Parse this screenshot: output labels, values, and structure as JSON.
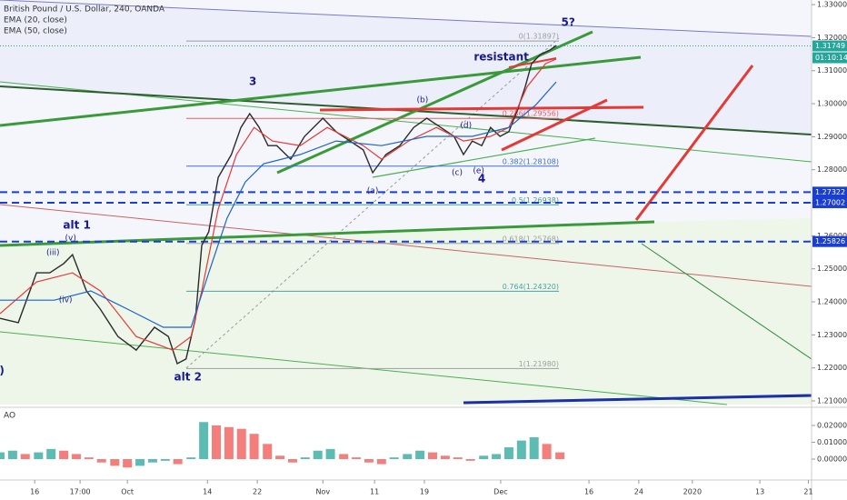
{
  "chart_data": [
    {
      "type": "line",
      "series": [
        {
          "name": "British Pound / U.S. Dollar, 240, OANDA",
          "color": "#2a2a2a",
          "x": [
            0,
            2.9,
            5.8,
            7.9,
            10.1,
            11.5,
            13.7,
            15.9,
            18.7,
            21.6,
            24.5,
            26.7,
            28.1,
            29.5,
            31.0,
            32.0,
            33.1,
            34.6,
            36.7,
            38.2,
            39.6,
            41.1,
            42.5,
            43.9,
            46.1,
            48.3,
            51.2,
            53.3,
            55.5,
            57.6,
            59.1,
            61.2,
            63.4,
            65.6,
            67.7,
            69.9,
            72.0,
            73.5,
            74.9,
            76.4,
            77.8,
            79.3,
            80.7,
            82.1,
            83.3,
            84.3,
            85.7,
            87.2,
            88.2
          ],
          "values": [
            1.235,
            1.2337,
            1.2488,
            1.2488,
            1.2516,
            1.2543,
            1.2433,
            1.2378,
            1.2295,
            1.2254,
            1.2323,
            1.2295,
            1.2213,
            1.2227,
            1.235,
            1.2571,
            1.2612,
            1.2777,
            1.2846,
            1.2928,
            1.297,
            1.2928,
            1.2873,
            1.2873,
            1.2832,
            1.2901,
            1.2956,
            1.2915,
            1.2887,
            1.286,
            1.2791,
            1.2846,
            1.2873,
            1.2928,
            1.2956,
            1.2928,
            1.2901,
            1.2846,
            1.2887,
            1.2873,
            1.2928,
            1.2901,
            1.2915,
            1.2983,
            1.3052,
            1.3121,
            1.3149,
            1.3162,
            1.3176
          ]
        },
        {
          "name": "EMA (20, close)",
          "color": "#e53935",
          "x": [
            0,
            5.8,
            11.5,
            15.9,
            21.6,
            27.4,
            30.3,
            32.0,
            34.6,
            37.5,
            40.3,
            43.2,
            47.6,
            51.9,
            57.6,
            60.5,
            64.8,
            69.2,
            73.5,
            77.8,
            80.7,
            83.6,
            86.5,
            88.2
          ],
          "values": [
            1.2364,
            1.246,
            1.2488,
            1.2433,
            1.2295,
            1.2254,
            1.2295,
            1.2433,
            1.2681,
            1.2846,
            1.2928,
            1.2887,
            1.2873,
            1.2928,
            1.2873,
            1.2832,
            1.2887,
            1.2928,
            1.2887,
            1.2901,
            1.2928,
            1.3052,
            1.3121,
            1.3135
          ]
        },
        {
          "name": "EMA (50, close)",
          "color": "#1e63c8",
          "x": [
            0,
            8.6,
            14.4,
            20.2,
            25.9,
            30.3,
            33.1,
            36.0,
            38.9,
            41.8,
            47.6,
            53.3,
            60.5,
            67.7,
            74.9,
            80.7,
            85.0,
            88.2
          ],
          "values": [
            1.2405,
            1.2405,
            1.2433,
            1.2378,
            1.2323,
            1.2323,
            1.2488,
            1.2653,
            1.2763,
            1.2818,
            1.2846,
            1.2887,
            1.2873,
            1.2901,
            1.2901,
            1.2928,
            1.2997,
            1.3066
          ]
        }
      ],
      "xlim": [
        0,
        128.7
      ],
      "xticks": [
        {
          "value": 5.5,
          "label": "16"
        },
        {
          "value": 12.7,
          "label": "17:00"
        },
        {
          "value": 20.2,
          "label": "Oct"
        },
        {
          "value": 32.9,
          "label": "14"
        },
        {
          "value": 40.8,
          "label": "22"
        },
        {
          "value": 51.2,
          "label": "Nov"
        },
        {
          "value": 59.4,
          "label": "11"
        },
        {
          "value": 67.3,
          "label": "19"
        },
        {
          "value": 79.4,
          "label": "Dec"
        },
        {
          "value": 93.4,
          "label": "16"
        },
        {
          "value": 101.3,
          "label": "24"
        },
        {
          "value": 109.8,
          "label": "2020"
        },
        {
          "value": 120.5,
          "label": "13"
        },
        {
          "value": 128.2,
          "label": "21"
        }
      ],
      "ylim": [
        1.2089,
        1.3314
      ],
      "yticks": [
        {
          "value": 1.33,
          "label": "1.33000"
        },
        {
          "value": 1.32,
          "label": "1.32000"
        },
        {
          "value": 1.31,
          "label": "1.31000"
        },
        {
          "value": 1.3,
          "label": "1.30000"
        },
        {
          "value": 1.29,
          "label": "1.29000"
        },
        {
          "value": 1.28,
          "label": "1.28000"
        },
        {
          "value": 1.27,
          "label": "1.27000"
        },
        {
          "value": 1.26,
          "label": "1.26000"
        },
        {
          "value": 1.25,
          "label": "1.25000"
        },
        {
          "value": 1.24,
          "label": "1.24000"
        },
        {
          "value": 1.23,
          "label": "1.23000"
        },
        {
          "value": 1.22,
          "label": "1.22000"
        },
        {
          "value": 1.21,
          "label": "1.21000"
        }
      ],
      "fib_levels": [
        {
          "value": 1.31897,
          "label": "0(1.31897)",
          "color": "#9e9e9e"
        },
        {
          "value": 1.29556,
          "label": "0.236(1.29556)",
          "color": "#e06060"
        },
        {
          "value": 1.28108,
          "label": "0.382(1.28108)",
          "color": "#3f6fd0"
        },
        {
          "value": 1.26938,
          "label": "0.5(1.26938)",
          "color": "#4aa08a"
        },
        {
          "value": 1.25768,
          "label": "0.618(1.25768)",
          "color": "#9e9e9e"
        },
        {
          "value": 1.2432,
          "label": "0.764(1.24320)",
          "color": "#4aa0a8"
        },
        {
          "value": 1.2198,
          "label": "1(1.21980)",
          "color": "#9e9e9e"
        }
      ],
      "price_lines": [
        {
          "value": 1.31749,
          "color": "#26a69a",
          "countdown": "01:10:14"
        },
        {
          "value": 1.27322,
          "color": "#1a3fd0"
        },
        {
          "value": 1.27002,
          "color": "#1a3fd0"
        },
        {
          "value": 1.25826,
          "color": "#1a3fd0"
        }
      ],
      "annotations": [
        {
          "text": "5?",
          "x": 90.1,
          "y": 1.3245
        },
        {
          "text": "3",
          "x": 40.1,
          "y": 1.3066
        },
        {
          "text": "4",
          "x": 76.4,
          "y": 1.2772
        },
        {
          "text": "(b)",
          "x": 67.0,
          "y": 1.3011
        },
        {
          "text": "(d)",
          "x": 73.9,
          "y": 1.2934
        },
        {
          "text": "(a)",
          "x": 59.1,
          "y": 1.2736
        },
        {
          "text": "(c)",
          "x": 72.5,
          "y": 1.2791
        },
        {
          "text": "(e)",
          "x": 75.9,
          "y": 1.2796
        },
        {
          "text": "alt 1",
          "x": 12.2,
          "y": 1.2631
        },
        {
          "text": "(v)",
          "x": 11.2,
          "y": 1.2593
        },
        {
          "text": "(iii)",
          "x": 8.4,
          "y": 1.2549
        },
        {
          "text": "(iv)",
          "x": 10.4,
          "y": 1.2405
        },
        {
          "text": "alt 2",
          "x": 29.8,
          "y": 1.2171
        },
        {
          "text": "resistant",
          "x": 79.5,
          "y": 1.314
        },
        {
          "text": ")",
          "x": 0.3,
          "y": 1.2191
        }
      ]
    },
    {
      "type": "bar",
      "title": "AO",
      "up_color": "#26a69a",
      "down_color": "#ef5350",
      "x": [
        0,
        2.0,
        4.0,
        6.1,
        8.1,
        10.1,
        12.1,
        14.1,
        16.1,
        18.2,
        20.2,
        22.2,
        24.2,
        26.2,
        28.2,
        30.3,
        32.3,
        34.3,
        36.3,
        38.3,
        40.3,
        42.4,
        44.4,
        46.4,
        48.4,
        50.4,
        52.4,
        54.5,
        56.5,
        58.5,
        60.5,
        62.5,
        64.6,
        66.6,
        68.6,
        70.6,
        72.6,
        74.6,
        76.7,
        78.7,
        80.7,
        82.7,
        84.7,
        86.7,
        88.8
      ],
      "values": [
        0.004,
        0.005,
        0.003,
        0.004,
        0.006,
        0.005,
        0.003,
        0.001,
        -0.002,
        -0.004,
        -0.005,
        -0.004,
        -0.002,
        -0.001,
        -0.003,
        0.001,
        0.022,
        0.02,
        0.019,
        0.018,
        0.015,
        0.009,
        0.002,
        -0.002,
        0.001,
        0.005,
        0.006,
        0.003,
        0.001,
        -0.002,
        -0.003,
        0.001,
        0.003,
        0.005,
        0.004,
        0.002,
        0.001,
        -0.001,
        0.002,
        0.003,
        0.007,
        0.011,
        0.013,
        0.009,
        0.004
      ],
      "xlim": [
        0,
        128.7
      ],
      "ylim": [
        -0.0081,
        0.0297
      ],
      "yticks": [
        {
          "value": 0.02,
          "label": "0.02000"
        },
        {
          "value": 0.01,
          "label": "0.01000"
        },
        {
          "value": 0,
          "label": "0.00000"
        }
      ]
    }
  ]
}
